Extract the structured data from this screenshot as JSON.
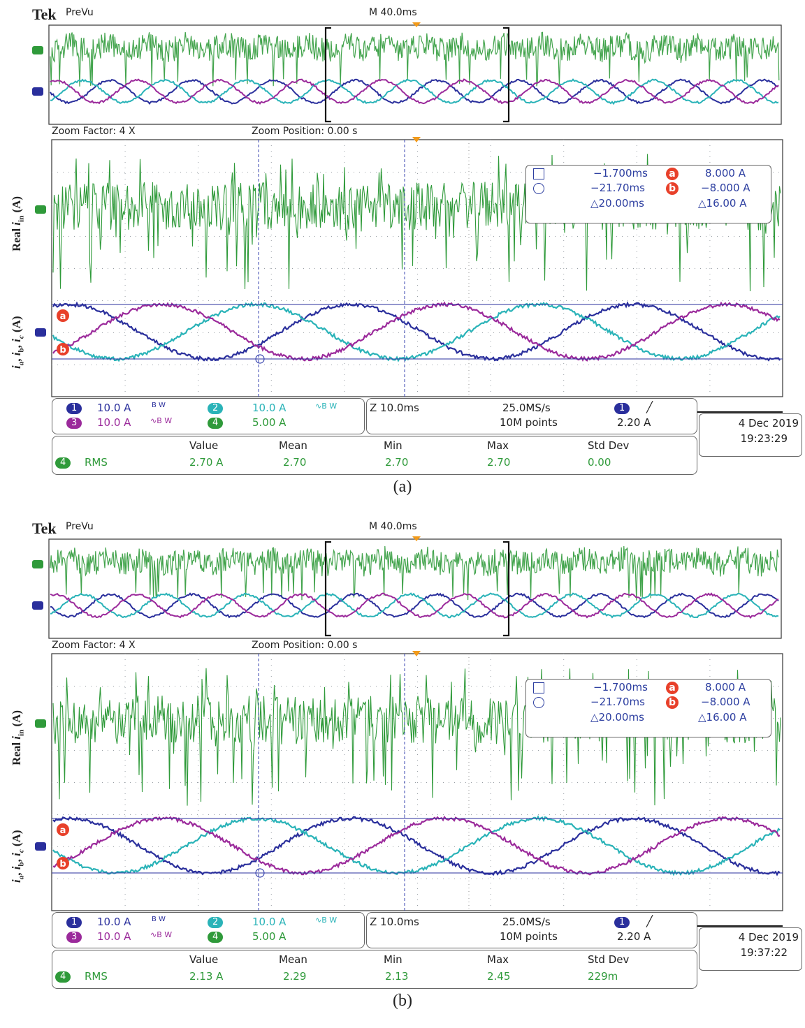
{
  "panels": [
    {
      "brand": "Tek",
      "mode": "PreVu",
      "timebase": "M 40.0ms",
      "zoom_factor": "Zoom Factor: 4 X",
      "zoom_position": "Zoom Position: 0.00 s",
      "ylabel_top": "Real i_in (A)",
      "ylabel_bottom": "i_a, i_b, i_c (A)",
      "cursor_time_a": "−1.700ms",
      "cursor_time_b": "−21.70ms",
      "cursor_dt": "△20.00ms",
      "cursor_a_label": "a",
      "cursor_b_label": "b",
      "cursor_val_a": "8.000 A",
      "cursor_val_b": "−8.000 A",
      "cursor_dv": "△16.00 A",
      "ch1_scale": "10.0 A",
      "ch2_scale": "10.0 A",
      "ch3_scale": "10.0 A",
      "ch4_scale": "5.00 A",
      "bw": "B W",
      "zoom_time": "Z 10.0ms",
      "sample_rate": "25.0MS/s",
      "record_length": "10M points",
      "trigger_level": "2.20 A",
      "date": "4 Dec  2019",
      "time": "19:23:29",
      "meas_headers": [
        "Value",
        "Mean",
        "Min",
        "Max",
        "Std Dev"
      ],
      "meas_name": "RMS",
      "meas_values": [
        "2.70 A",
        "2.70",
        "2.70",
        "2.70",
        "0.00"
      ],
      "caption": "(a)"
    },
    {
      "brand": "Tek",
      "mode": "PreVu",
      "timebase": "M 40.0ms",
      "zoom_factor": "Zoom Factor: 4 X",
      "zoom_position": "Zoom Position: 0.00 s",
      "ylabel_top": "Real i_in (A)",
      "ylabel_bottom": "i_a, i_b, i_c (A)",
      "cursor_time_a": "−1.700ms",
      "cursor_time_b": "−21.70ms",
      "cursor_dt": "△20.00ms",
      "cursor_a_label": "a",
      "cursor_b_label": "b",
      "cursor_val_a": "8.000 A",
      "cursor_val_b": "−8.000 A",
      "cursor_dv": "△16.00 A",
      "ch1_scale": "10.0 A",
      "ch2_scale": "10.0 A",
      "ch3_scale": "10.0 A",
      "ch4_scale": "5.00 A",
      "bw": "B W",
      "zoom_time": "Z 10.0ms",
      "sample_rate": "25.0MS/s",
      "record_length": "10M points",
      "trigger_level": "2.20 A",
      "date": "4 Dec  2019",
      "time": "19:37:22",
      "meas_headers": [
        "Value",
        "Mean",
        "Min",
        "Max",
        "Std Dev"
      ],
      "meas_name": "RMS",
      "meas_values": [
        "2.13 A",
        "2.29",
        "2.13",
        "2.45",
        "229m"
      ],
      "caption": "(b)"
    }
  ],
  "colors": {
    "ch1": "#2a2f9c",
    "ch2": "#2ab3b8",
    "ch3": "#9b2a9b",
    "ch4": "#2f9a3a",
    "cursor_badge": "#e8402a",
    "grid": "#9aa0a6"
  },
  "chart_data": [
    {
      "type": "line",
      "panel": "(a)",
      "xlabel": "",
      "series": [
        {
          "channel": "4",
          "role": "Real i_in",
          "volts_per_div_label": "5.00 A",
          "rms": 2.7
        },
        {
          "channel": "1",
          "role": "i_a",
          "amplitude": 10.0,
          "scale": "10.0 A"
        },
        {
          "channel": "2",
          "role": "i_b",
          "amplitude": 10.0,
          "scale": "10.0 A"
        },
        {
          "channel": "3",
          "role": "i_c",
          "amplitude": 10.0,
          "scale": "10.0 A"
        }
      ],
      "cursors": {
        "t_a_ms": -1.7,
        "t_b_ms": -21.7,
        "a_A": 8.0,
        "b_A": -8.0
      },
      "zoom_timebase_ms_per_div": 10.0
    },
    {
      "type": "line",
      "panel": "(b)",
      "xlabel": "",
      "series": [
        {
          "channel": "4",
          "role": "Real i_in",
          "volts_per_div_label": "5.00 A",
          "rms": 2.13
        },
        {
          "channel": "1",
          "role": "i_a",
          "amplitude": 10.0,
          "scale": "10.0 A"
        },
        {
          "channel": "2",
          "role": "i_b",
          "amplitude": 10.0,
          "scale": "10.0 A"
        },
        {
          "channel": "3",
          "role": "i_c",
          "amplitude": 10.0,
          "scale": "10.0 A"
        }
      ],
      "cursors": {
        "t_a_ms": -1.7,
        "t_b_ms": -21.7,
        "a_A": 8.0,
        "b_A": -8.0
      },
      "zoom_timebase_ms_per_div": 10.0
    }
  ]
}
